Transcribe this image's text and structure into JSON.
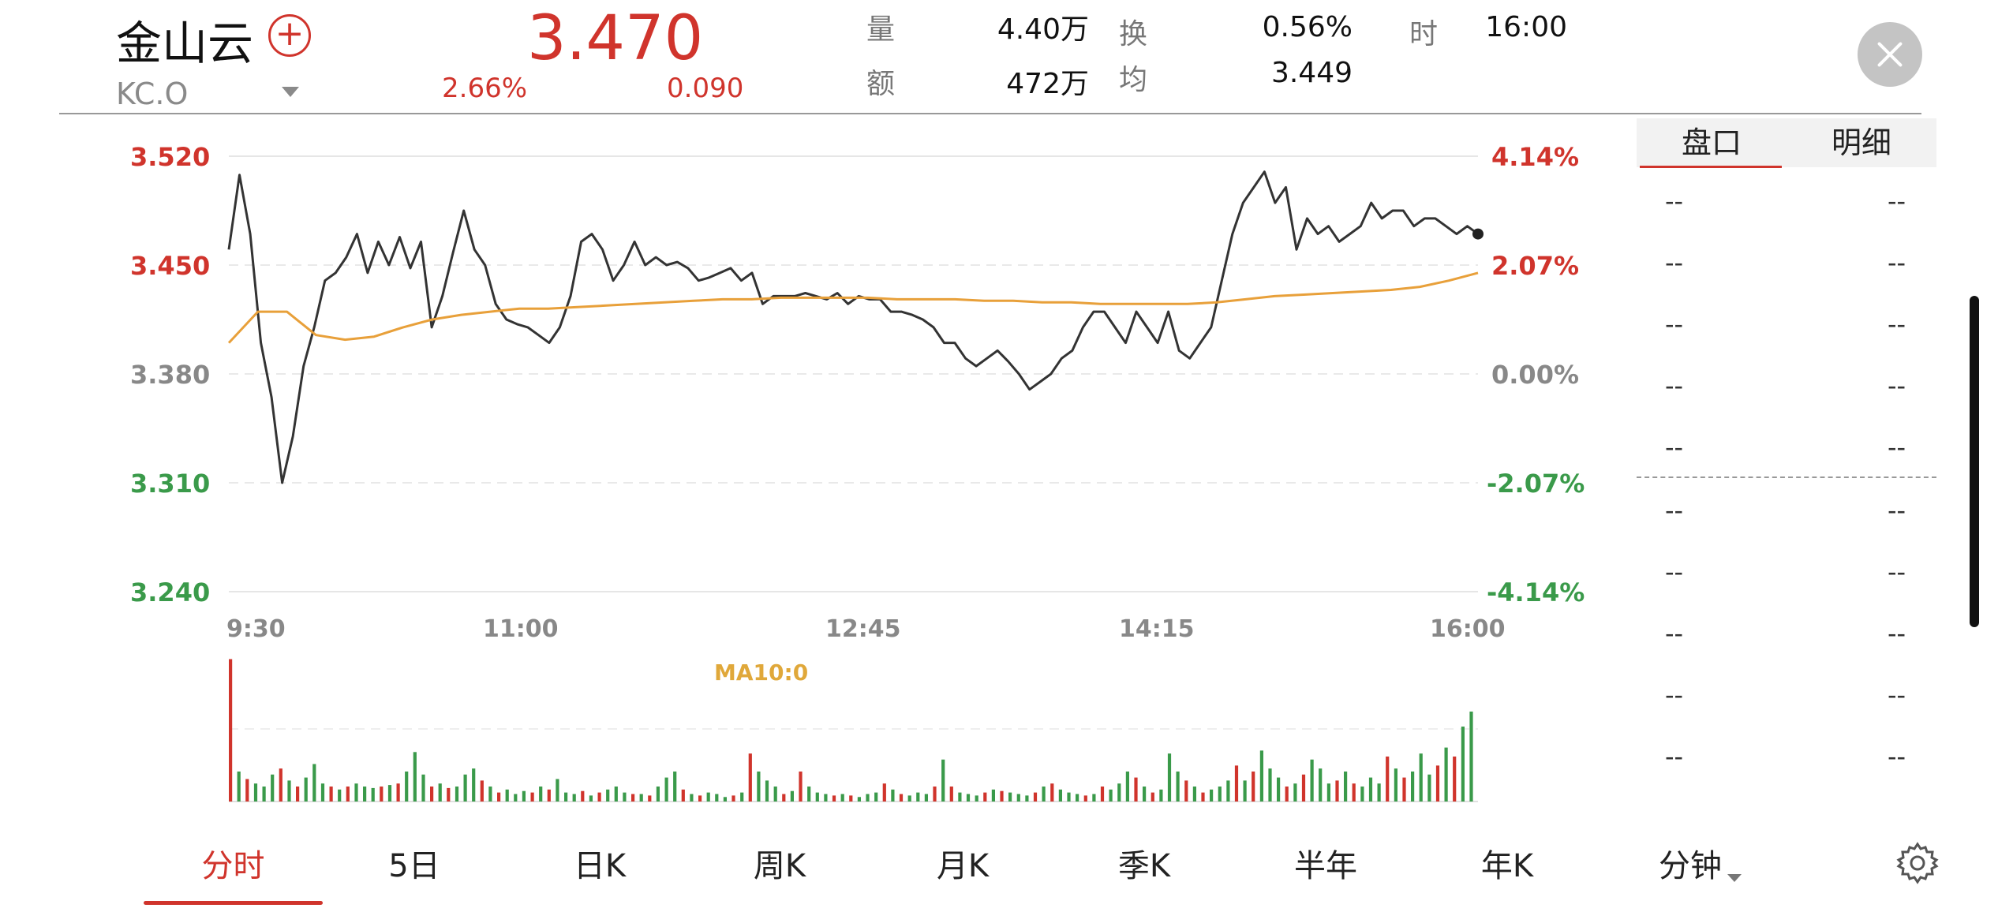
{
  "header": {
    "name": "金山云",
    "code": "KC.O",
    "price": "3.470",
    "change_pct": "2.66%",
    "change": "0.090",
    "stats": [
      {
        "label": "量",
        "value": "4.40万"
      },
      {
        "label": "额",
        "value": "472万"
      },
      {
        "label": "换",
        "value": "0.56%"
      },
      {
        "label": "均",
        "value": "3.449"
      },
      {
        "label": "时",
        "value": "16:00"
      }
    ],
    "add_icon": "plus-circle-icon",
    "close_icon": "close-icon"
  },
  "chart_data": {
    "type": "line",
    "x_ticks": [
      "9:30",
      "11:00",
      "12:45",
      "14:15",
      "16:00"
    ],
    "y_left": [
      "3.520",
      "3.450",
      "3.380",
      "3.310",
      "3.240"
    ],
    "y_right": [
      "4.14%",
      "2.07%",
      "0.00%",
      "-2.07%",
      "-4.14%"
    ],
    "ylim": [
      3.24,
      3.52
    ],
    "baseline": 3.38,
    "series": [
      {
        "name": "",
        "color": "#333333",
        "values": [
          3.46,
          3.508,
          3.47,
          3.4,
          3.365,
          3.31,
          3.34,
          3.385,
          3.41,
          3.44,
          3.445,
          3.455,
          3.47,
          3.445,
          3.465,
          3.45,
          3.468,
          3.448,
          3.465,
          3.41,
          3.43,
          3.458,
          3.485,
          3.46,
          3.45,
          3.425,
          3.415,
          3.412,
          3.41,
          3.405,
          3.4,
          3.41,
          3.43,
          3.465,
          3.47,
          3.46,
          3.44,
          3.45,
          3.465,
          3.45,
          3.455,
          3.45,
          3.452,
          3.448,
          3.44,
          3.442,
          3.445,
          3.448,
          3.44,
          3.445,
          3.425,
          3.43,
          3.43,
          3.43,
          3.432,
          3.43,
          3.428,
          3.432,
          3.425,
          3.43,
          3.428,
          3.428,
          3.42,
          3.42,
          3.418,
          3.415,
          3.41,
          3.4,
          3.4,
          3.39,
          3.385,
          3.39,
          3.395,
          3.388,
          3.38,
          3.37,
          3.375,
          3.38,
          3.39,
          3.395,
          3.41,
          3.42,
          3.42,
          3.41,
          3.4,
          3.42,
          3.41,
          3.4,
          3.42,
          3.395,
          3.39,
          3.4,
          3.41,
          3.44,
          3.47,
          3.49,
          3.5,
          3.51,
          3.49,
          3.5,
          3.46,
          3.48,
          3.47,
          3.475,
          3.465,
          3.47,
          3.475,
          3.49,
          3.48,
          3.485,
          3.485,
          3.475,
          3.48,
          3.48,
          3.475,
          3.47,
          3.475,
          3.47
        ]
      },
      {
        "name": "MA10:0",
        "color": "#e8a03a",
        "values": [
          3.4,
          3.42,
          3.42,
          3.405,
          3.402,
          3.404,
          3.41,
          3.415,
          3.418,
          3.42,
          3.422,
          3.422,
          3.423,
          3.424,
          3.425,
          3.426,
          3.427,
          3.428,
          3.428,
          3.429,
          3.429,
          3.429,
          3.429,
          3.428,
          3.428,
          3.428,
          3.427,
          3.427,
          3.426,
          3.426,
          3.425,
          3.425,
          3.425,
          3.425,
          3.426,
          3.428,
          3.43,
          3.431,
          3.432,
          3.433,
          3.434,
          3.436,
          3.44,
          3.445
        ]
      }
    ],
    "volume": {
      "label": "MA10:0",
      "bars": [
        0.95,
        0.2,
        0.15,
        0.12,
        0.1,
        0.18,
        0.22,
        0.14,
        0.1,
        0.16,
        0.25,
        0.12,
        0.1,
        0.08,
        0.1,
        0.12,
        0.1,
        0.09,
        0.1,
        0.11,
        0.12,
        0.2,
        0.33,
        0.18,
        0.1,
        0.12,
        0.09,
        0.1,
        0.18,
        0.22,
        0.14,
        0.1,
        0.06,
        0.08,
        0.05,
        0.07,
        0.06,
        0.1,
        0.08,
        0.15,
        0.06,
        0.05,
        0.07,
        0.04,
        0.06,
        0.08,
        0.1,
        0.06,
        0.05,
        0.05,
        0.04,
        0.1,
        0.16,
        0.2,
        0.08,
        0.05,
        0.04,
        0.06,
        0.05,
        0.03,
        0.04,
        0.06,
        0.32,
        0.2,
        0.14,
        0.1,
        0.05,
        0.07,
        0.2,
        0.1,
        0.06,
        0.05,
        0.04,
        0.05,
        0.04,
        0.03,
        0.05,
        0.06,
        0.12,
        0.08,
        0.05,
        0.04,
        0.06,
        0.05,
        0.1,
        0.28,
        0.1,
        0.06,
        0.05,
        0.04,
        0.06,
        0.08,
        0.07,
        0.06,
        0.05,
        0.04,
        0.06,
        0.1,
        0.12,
        0.08,
        0.06,
        0.05,
        0.04,
        0.05,
        0.1,
        0.08,
        0.12,
        0.2,
        0.16,
        0.1,
        0.06,
        0.08,
        0.32,
        0.2,
        0.14,
        0.1,
        0.06,
        0.08,
        0.1,
        0.14,
        0.24,
        0.14,
        0.2,
        0.34,
        0.22,
        0.16,
        0.1,
        0.12,
        0.18,
        0.28,
        0.22,
        0.12,
        0.14,
        0.2,
        0.12,
        0.1,
        0.16,
        0.12,
        0.3,
        0.22,
        0.16,
        0.2,
        0.32,
        0.18,
        0.24,
        0.36,
        0.3,
        0.5,
        0.6
      ]
    }
  },
  "panel": {
    "tabs": [
      "盘口",
      "明细"
    ],
    "rows": [
      [
        "--",
        "--"
      ],
      [
        "--",
        "--"
      ],
      [
        "--",
        "--"
      ],
      [
        "--",
        "--"
      ],
      [
        "--",
        "--"
      ],
      [
        "--",
        "--"
      ],
      [
        "--",
        "--"
      ],
      [
        "--",
        "--"
      ],
      [
        "--",
        "--"
      ],
      [
        "--",
        "--"
      ]
    ]
  },
  "tabs": [
    "分时",
    "5日",
    "日K",
    "周K",
    "月K",
    "季K",
    "半年",
    "年K"
  ],
  "minute_tab": "分钟",
  "settings_icon": "gear-icon"
}
